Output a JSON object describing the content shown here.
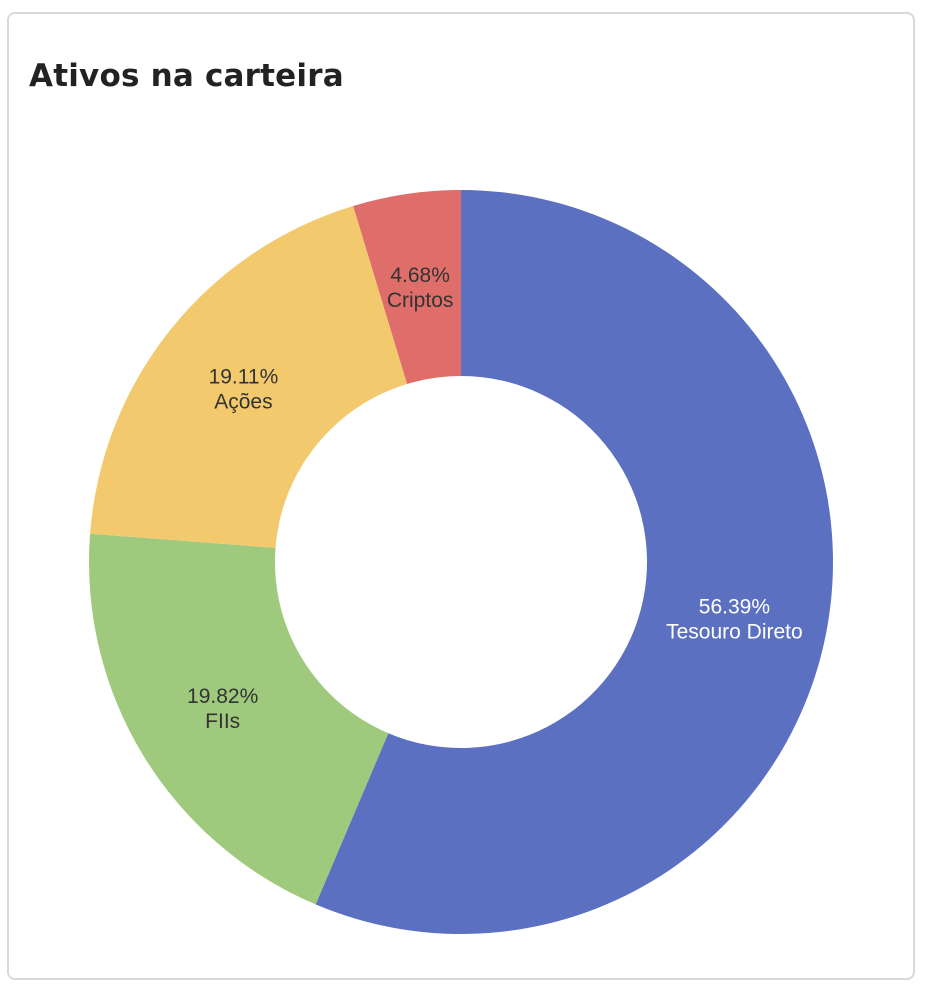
{
  "card": {
    "title": "Ativos na carteira"
  },
  "chart_data": {
    "type": "pie",
    "style": "donut",
    "title": "Ativos na carteira",
    "slices": [
      {
        "label": "Tesouro Direto",
        "value": 56.39,
        "display": "56.39%",
        "color": "#5b70c0",
        "text_color": "#ffffff"
      },
      {
        "label": "FIIs",
        "value": 19.82,
        "display": "19.82%",
        "color": "#9fca7e",
        "text_color": "#333333"
      },
      {
        "label": "Ações",
        "value": 19.11,
        "display": "19.11%",
        "color": "#f2c96d",
        "text_color": "#333333"
      },
      {
        "label": "Criptos",
        "value": 4.68,
        "display": "4.68%",
        "color": "#df6e6a",
        "text_color": "#333333"
      }
    ],
    "start_angle": "12 o'clock",
    "direction": "clockwise",
    "legend": "none"
  }
}
